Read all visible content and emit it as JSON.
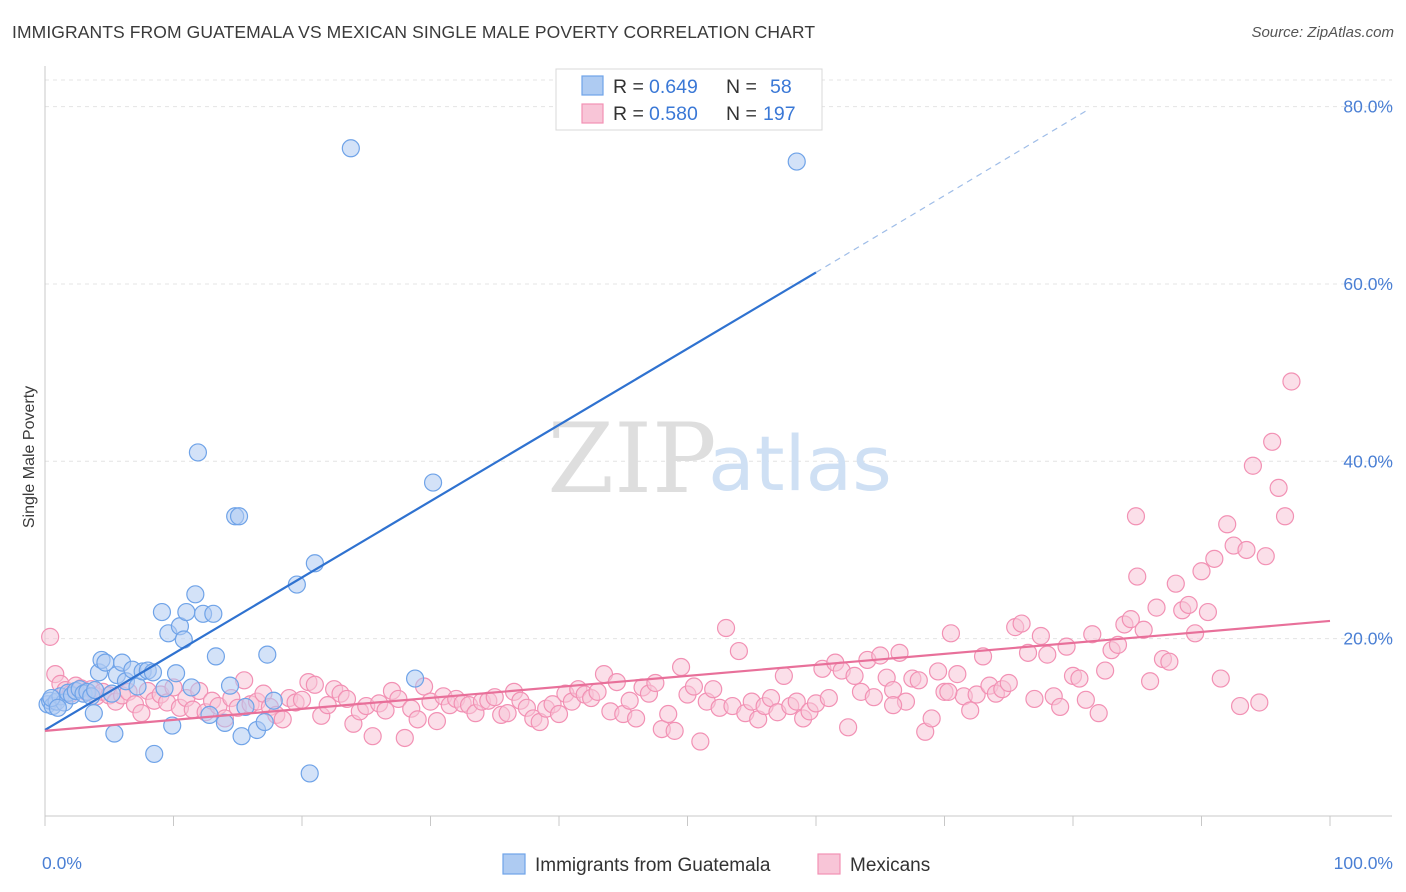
{
  "header": {
    "title": "IMMIGRANTS FROM GUATEMALA VS MEXICAN SINGLE MALE POVERTY CORRELATION CHART",
    "source": "Source: ZipAtlas.com"
  },
  "watermark": {
    "zip": "ZIP",
    "atlas": "atlas"
  },
  "chart_data": {
    "type": "scatter",
    "xlabel": "",
    "ylabel": "Single Male Poverty",
    "xlim": [
      0,
      100
    ],
    "ylim": [
      0,
      83
    ],
    "x_tick_labels": [
      {
        "value": 0,
        "label": "0.0%"
      },
      {
        "value": 100,
        "label": "100.0%"
      }
    ],
    "y_tick_labels": [
      {
        "value": 20,
        "label": "20.0%"
      },
      {
        "value": 40,
        "label": "40.0%"
      },
      {
        "value": 60,
        "label": "60.0%"
      },
      {
        "value": 80,
        "label": "80.0%"
      }
    ],
    "grid": true,
    "legend_position": "top-center",
    "stats": [
      {
        "r_label": "R =",
        "r_value": "0.649",
        "n_label": "N =",
        "n_value": "58"
      },
      {
        "r_label": "R =",
        "r_value": "0.580",
        "n_label": "N =",
        "n_value": "197"
      }
    ],
    "series": [
      {
        "name": "Immigrants from Guatemala",
        "color": "#6fa3e8",
        "fill": "#aecbf2",
        "line_color": "#2f72d0",
        "trend": {
          "x0": 0,
          "y0": 9.7,
          "x1": 60,
          "y1": 61.3,
          "dash_x1": 81,
          "dash_y1": 79.5
        },
        "points": [
          [
            0.2,
            12.6
          ],
          [
            0.4,
            13.0
          ],
          [
            0.6,
            12.4
          ],
          [
            0.9,
            12.9
          ],
          [
            1.2,
            13.5
          ],
          [
            1.5,
            12.8
          ],
          [
            1.8,
            13.9
          ],
          [
            2.1,
            13.6
          ],
          [
            2.4,
            14.1
          ],
          [
            2.7,
            14.3
          ],
          [
            3.0,
            13.8
          ],
          [
            3.3,
            14.0
          ],
          [
            3.6,
            13.5
          ],
          [
            3.9,
            14.2
          ],
          [
            0.5,
            13.3
          ],
          [
            1.0,
            12.2
          ],
          [
            3.8,
            11.6
          ],
          [
            4.2,
            16.2
          ],
          [
            4.4,
            17.6
          ],
          [
            4.7,
            17.3
          ],
          [
            5.2,
            13.8
          ],
          [
            5.6,
            15.9
          ],
          [
            6.0,
            17.3
          ],
          [
            6.3,
            15.2
          ],
          [
            6.8,
            16.5
          ],
          [
            7.2,
            14.6
          ],
          [
            7.6,
            16.3
          ],
          [
            8.0,
            16.4
          ],
          [
            8.4,
            16.2
          ],
          [
            5.4,
            9.3
          ],
          [
            8.5,
            7.0
          ],
          [
            9.1,
            23.0
          ],
          [
            9.3,
            14.4
          ],
          [
            9.6,
            20.6
          ],
          [
            9.9,
            10.2
          ],
          [
            10.2,
            16.1
          ],
          [
            10.5,
            21.4
          ],
          [
            10.8,
            19.9
          ],
          [
            11.0,
            23.0
          ],
          [
            11.4,
            14.5
          ],
          [
            11.7,
            25.0
          ],
          [
            11.9,
            41.0
          ],
          [
            12.3,
            22.8
          ],
          [
            12.8,
            11.4
          ],
          [
            13.1,
            22.8
          ],
          [
            13.3,
            18.0
          ],
          [
            14.0,
            10.5
          ],
          [
            14.4,
            14.7
          ],
          [
            14.8,
            33.8
          ],
          [
            15.1,
            33.8
          ],
          [
            15.3,
            9.0
          ],
          [
            15.6,
            12.3
          ],
          [
            16.5,
            9.7
          ],
          [
            17.1,
            10.6
          ],
          [
            17.3,
            18.2
          ],
          [
            17.8,
            13.0
          ],
          [
            19.6,
            26.1
          ],
          [
            20.6,
            4.8
          ],
          [
            21.0,
            28.5
          ],
          [
            23.8,
            75.3
          ],
          [
            28.8,
            15.5
          ],
          [
            30.2,
            37.6
          ],
          [
            58.5,
            73.8
          ]
        ]
      },
      {
        "name": "Mexicans",
        "color": "#f291b4",
        "fill": "#f8c5d7",
        "line_color": "#e8709a",
        "trend": {
          "x0": 0,
          "y0": 9.6,
          "x1": 100,
          "y1": 22.0
        },
        "points": [
          [
            0.4,
            20.2
          ],
          [
            0.8,
            16.0
          ],
          [
            1.2,
            14.9
          ],
          [
            1.6,
            14.2
          ],
          [
            2.0,
            13.8
          ],
          [
            2.4,
            14.7
          ],
          [
            2.8,
            14.4
          ],
          [
            3.2,
            14.0
          ],
          [
            3.6,
            14.3
          ],
          [
            4.0,
            13.5
          ],
          [
            4.5,
            14.0
          ],
          [
            5.0,
            13.6
          ],
          [
            5.5,
            12.9
          ],
          [
            6.0,
            13.6
          ],
          [
            6.5,
            14.0
          ],
          [
            7.0,
            12.6
          ],
          [
            7.5,
            11.6
          ],
          [
            8.0,
            14.1
          ],
          [
            8.5,
            13.0
          ],
          [
            9.0,
            13.7
          ],
          [
            9.5,
            12.8
          ],
          [
            10.0,
            14.5
          ],
          [
            10.5,
            12.2
          ],
          [
            11.0,
            13.3
          ],
          [
            11.5,
            12.0
          ],
          [
            12.0,
            14.1
          ],
          [
            12.5,
            11.7
          ],
          [
            13.0,
            13.0
          ],
          [
            13.5,
            12.4
          ],
          [
            14.0,
            11.0
          ],
          [
            14.5,
            13.3
          ],
          [
            15.0,
            12.2
          ],
          [
            15.5,
            15.3
          ],
          [
            16.0,
            12.6
          ],
          [
            16.5,
            12.9
          ],
          [
            17.0,
            13.8
          ],
          [
            17.5,
            12.3
          ],
          [
            18.0,
            11.4
          ],
          [
            18.5,
            10.9
          ],
          [
            19.0,
            13.3
          ],
          [
            19.5,
            12.8
          ],
          [
            20.0,
            13.1
          ],
          [
            20.5,
            15.1
          ],
          [
            21.0,
            14.8
          ],
          [
            21.5,
            11.3
          ],
          [
            22.0,
            12.5
          ],
          [
            22.5,
            14.3
          ],
          [
            23.0,
            13.8
          ],
          [
            23.5,
            13.2
          ],
          [
            24.0,
            10.4
          ],
          [
            24.5,
            11.8
          ],
          [
            25.0,
            12.4
          ],
          [
            25.5,
            9.0
          ],
          [
            26.0,
            12.7
          ],
          [
            26.5,
            11.9
          ],
          [
            27.0,
            14.1
          ],
          [
            27.5,
            13.2
          ],
          [
            28.0,
            8.8
          ],
          [
            28.5,
            12.1
          ],
          [
            29.0,
            10.9
          ],
          [
            29.5,
            14.6
          ],
          [
            30.0,
            12.9
          ],
          [
            30.5,
            10.7
          ],
          [
            31.0,
            13.5
          ],
          [
            31.5,
            12.5
          ],
          [
            32.0,
            13.2
          ],
          [
            32.5,
            12.7
          ],
          [
            33.0,
            12.5
          ],
          [
            33.5,
            11.6
          ],
          [
            34.0,
            12.9
          ],
          [
            34.5,
            13.0
          ],
          [
            35.0,
            13.4
          ],
          [
            35.5,
            11.4
          ],
          [
            36.0,
            11.6
          ],
          [
            36.5,
            14.0
          ],
          [
            37.0,
            13.0
          ],
          [
            37.5,
            12.2
          ],
          [
            38.0,
            11.0
          ],
          [
            38.5,
            10.6
          ],
          [
            39.0,
            12.1
          ],
          [
            39.5,
            12.6
          ],
          [
            40.0,
            11.5
          ],
          [
            40.5,
            13.8
          ],
          [
            41.0,
            12.9
          ],
          [
            41.5,
            14.3
          ],
          [
            42.0,
            13.7
          ],
          [
            42.5,
            13.3
          ],
          [
            43.0,
            14.0
          ],
          [
            43.5,
            16.0
          ],
          [
            44.0,
            11.8
          ],
          [
            44.5,
            15.1
          ],
          [
            45.0,
            11.5
          ],
          [
            45.5,
            13.0
          ],
          [
            46.0,
            11.0
          ],
          [
            46.5,
            14.5
          ],
          [
            47.0,
            13.8
          ],
          [
            47.5,
            15.0
          ],
          [
            48.0,
            9.8
          ],
          [
            48.5,
            11.5
          ],
          [
            49.0,
            9.6
          ],
          [
            49.5,
            16.8
          ],
          [
            50.0,
            13.7
          ],
          [
            50.5,
            14.6
          ],
          [
            51.0,
            8.4
          ],
          [
            51.5,
            12.9
          ],
          [
            52.0,
            14.3
          ],
          [
            52.5,
            12.2
          ],
          [
            53.0,
            21.2
          ],
          [
            53.5,
            12.4
          ],
          [
            54.0,
            18.6
          ],
          [
            54.5,
            11.6
          ],
          [
            55.0,
            12.9
          ],
          [
            55.5,
            10.9
          ],
          [
            56.0,
            12.4
          ],
          [
            56.5,
            13.3
          ],
          [
            57.0,
            11.7
          ],
          [
            57.5,
            15.8
          ],
          [
            58.0,
            12.4
          ],
          [
            58.5,
            12.9
          ],
          [
            59.0,
            11.0
          ],
          [
            59.5,
            11.8
          ],
          [
            60.0,
            12.7
          ],
          [
            60.5,
            16.6
          ],
          [
            61.0,
            13.3
          ],
          [
            61.5,
            17.3
          ],
          [
            62.0,
            16.4
          ],
          [
            62.5,
            10.0
          ],
          [
            63.0,
            15.8
          ],
          [
            63.5,
            14.0
          ],
          [
            64.0,
            17.6
          ],
          [
            64.5,
            13.4
          ],
          [
            65.0,
            18.1
          ],
          [
            65.5,
            15.6
          ],
          [
            66.0,
            14.2
          ],
          [
            66.5,
            18.4
          ],
          [
            67.0,
            12.9
          ],
          [
            67.5,
            15.5
          ],
          [
            68.0,
            15.3
          ],
          [
            68.5,
            9.5
          ],
          [
            69.0,
            11.0
          ],
          [
            69.5,
            16.3
          ],
          [
            70.0,
            14.0
          ],
          [
            70.5,
            20.6
          ],
          [
            71.0,
            16.0
          ],
          [
            71.5,
            13.5
          ],
          [
            72.0,
            11.9
          ],
          [
            72.5,
            13.7
          ],
          [
            73.0,
            18.0
          ],
          [
            73.5,
            14.7
          ],
          [
            74.0,
            13.8
          ],
          [
            74.5,
            14.3
          ],
          [
            75.0,
            15.0
          ],
          [
            75.5,
            21.3
          ],
          [
            76.0,
            21.7
          ],
          [
            76.5,
            18.4
          ],
          [
            77.0,
            13.2
          ],
          [
            77.5,
            20.3
          ],
          [
            78.0,
            18.2
          ],
          [
            78.5,
            13.5
          ],
          [
            79.0,
            12.3
          ],
          [
            79.5,
            19.1
          ],
          [
            80.0,
            15.8
          ],
          [
            80.5,
            15.5
          ],
          [
            81.0,
            13.1
          ],
          [
            81.5,
            20.5
          ],
          [
            82.0,
            11.6
          ],
          [
            82.5,
            16.4
          ],
          [
            83.0,
            18.7
          ],
          [
            83.5,
            19.3
          ],
          [
            84.0,
            21.6
          ],
          [
            84.5,
            22.2
          ],
          [
            85.0,
            27.0
          ],
          [
            85.5,
            21.0
          ],
          [
            86.0,
            15.2
          ],
          [
            86.5,
            23.5
          ],
          [
            87.0,
            17.7
          ],
          [
            87.5,
            17.4
          ],
          [
            88.0,
            26.2
          ],
          [
            88.5,
            23.2
          ],
          [
            89.0,
            23.8
          ],
          [
            89.5,
            20.6
          ],
          [
            90.0,
            27.6
          ],
          [
            90.5,
            23.0
          ],
          [
            91.0,
            29.0
          ],
          [
            91.5,
            15.5
          ],
          [
            92.0,
            32.9
          ],
          [
            92.5,
            30.5
          ],
          [
            93.0,
            12.4
          ],
          [
            93.5,
            30.0
          ],
          [
            94.0,
            39.5
          ],
          [
            94.5,
            12.8
          ],
          [
            95.0,
            29.3
          ],
          [
            95.5,
            42.2
          ],
          [
            96.0,
            37.0
          ],
          [
            96.5,
            33.8
          ],
          [
            97.0,
            49.0
          ],
          [
            84.9,
            33.8
          ],
          [
            70.3,
            14.0
          ],
          [
            66.0,
            12.5
          ]
        ]
      }
    ]
  }
}
